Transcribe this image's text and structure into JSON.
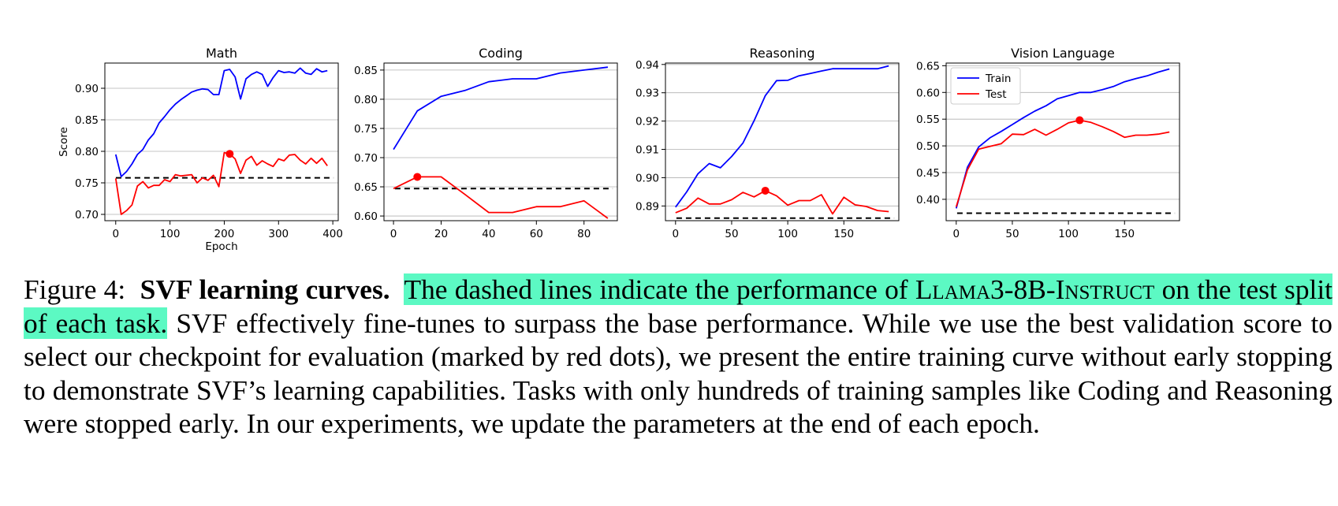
{
  "chart_data": [
    {
      "type": "line",
      "title": "Math",
      "xlabel": "Epoch",
      "ylabel": "Score",
      "xlim": [
        -20,
        410
      ],
      "ylim": [
        0.69,
        0.94
      ],
      "xticks": [
        0,
        100,
        200,
        300,
        400
      ],
      "yticks": [
        0.7,
        0.75,
        0.8,
        0.85,
        0.9
      ],
      "ytick_labels": [
        "0.70",
        "0.75",
        "0.80",
        "0.85",
        "0.90"
      ],
      "grid": "horizontal",
      "baseline": 0.758,
      "best": {
        "x": 210,
        "y": 0.796
      },
      "series": [
        {
          "name": "Train",
          "color": "#0000ff",
          "x": [
            0,
            10,
            20,
            30,
            40,
            50,
            60,
            70,
            80,
            90,
            100,
            110,
            120,
            130,
            140,
            150,
            160,
            170,
            180,
            190,
            200,
            210,
            220,
            230,
            240,
            250,
            260,
            270,
            280,
            290,
            300,
            310,
            320,
            330,
            340,
            350,
            360,
            370,
            380,
            390
          ],
          "y": [
            0.795,
            0.76,
            0.768,
            0.78,
            0.795,
            0.803,
            0.818,
            0.828,
            0.845,
            0.855,
            0.866,
            0.875,
            0.882,
            0.888,
            0.894,
            0.897,
            0.899,
            0.898,
            0.89,
            0.89,
            0.928,
            0.93,
            0.918,
            0.883,
            0.915,
            0.922,
            0.926,
            0.922,
            0.903,
            0.917,
            0.928,
            0.925,
            0.926,
            0.924,
            0.932,
            0.924,
            0.922,
            0.931,
            0.926,
            0.928
          ]
        },
        {
          "name": "Test",
          "color": "#ff0000",
          "x": [
            0,
            10,
            20,
            30,
            40,
            50,
            60,
            70,
            80,
            90,
            100,
            110,
            120,
            130,
            140,
            150,
            160,
            170,
            180,
            190,
            200,
            210,
            220,
            230,
            240,
            250,
            260,
            270,
            280,
            290,
            300,
            310,
            320,
            330,
            340,
            350,
            360,
            370,
            380,
            390
          ],
          "y": [
            0.757,
            0.7,
            0.706,
            0.715,
            0.745,
            0.752,
            0.742,
            0.746,
            0.746,
            0.755,
            0.752,
            0.763,
            0.761,
            0.762,
            0.763,
            0.75,
            0.758,
            0.754,
            0.762,
            0.744,
            0.798,
            0.796,
            0.788,
            0.765,
            0.786,
            0.792,
            0.778,
            0.785,
            0.78,
            0.776,
            0.788,
            0.785,
            0.794,
            0.795,
            0.786,
            0.78,
            0.789,
            0.781,
            0.789,
            0.777
          ]
        }
      ]
    },
    {
      "type": "line",
      "title": "Coding",
      "xlabel": "",
      "ylabel": "",
      "xlim": [
        -4,
        94
      ],
      "ylim": [
        0.592,
        0.862
      ],
      "xticks": [
        0,
        20,
        40,
        60,
        80
      ],
      "yticks": [
        0.6,
        0.65,
        0.7,
        0.75,
        0.8,
        0.85
      ],
      "ytick_labels": [
        "0.60",
        "0.65",
        "0.70",
        "0.75",
        "0.80",
        "0.85"
      ],
      "grid": "horizontal",
      "baseline": 0.647,
      "best": {
        "x": 10,
        "y": 0.667
      },
      "series": [
        {
          "name": "Train",
          "color": "#0000ff",
          "x": [
            0,
            10,
            20,
            30,
            40,
            50,
            60,
            70,
            80,
            90
          ],
          "y": [
            0.714,
            0.78,
            0.805,
            0.815,
            0.83,
            0.835,
            0.835,
            0.845,
            0.85,
            0.855
          ]
        },
        {
          "name": "Test",
          "color": "#ff0000",
          "x": [
            0,
            10,
            20,
            30,
            40,
            50,
            60,
            70,
            80,
            90
          ],
          "y": [
            0.647,
            0.667,
            0.667,
            0.637,
            0.606,
            0.606,
            0.616,
            0.616,
            0.626,
            0.596
          ]
        }
      ]
    },
    {
      "type": "line",
      "title": "Reasoning",
      "xlabel": "",
      "ylabel": "",
      "xlim": [
        -9,
        199
      ],
      "ylim": [
        0.8848,
        0.9405
      ],
      "xticks": [
        0,
        50,
        100,
        150
      ],
      "yticks": [
        0.89,
        0.9,
        0.91,
        0.92,
        0.93,
        0.94
      ],
      "ytick_labels": [
        "0.89",
        "0.90",
        "0.91",
        "0.92",
        "0.93",
        "0.94"
      ],
      "grid": "horizontal",
      "baseline": 0.8857,
      "best": {
        "x": 80,
        "y": 0.8954
      },
      "series": [
        {
          "name": "Train",
          "color": "#0000ff",
          "x": [
            0,
            10,
            20,
            30,
            40,
            50,
            60,
            70,
            80,
            90,
            100,
            110,
            120,
            130,
            140,
            150,
            160,
            170,
            180,
            190
          ],
          "y": [
            0.8896,
            0.895,
            0.9014,
            0.905,
            0.9035,
            0.9075,
            0.9122,
            0.9201,
            0.929,
            0.9343,
            0.9344,
            0.936,
            0.9368,
            0.9377,
            0.9385,
            0.9385,
            0.9385,
            0.9385,
            0.9385,
            0.9395
          ]
        },
        {
          "name": "Test",
          "color": "#ff0000",
          "x": [
            0,
            10,
            20,
            30,
            40,
            50,
            60,
            70,
            80,
            90,
            100,
            110,
            120,
            130,
            140,
            150,
            160,
            170,
            180,
            190
          ],
          "y": [
            0.8876,
            0.8892,
            0.8928,
            0.8907,
            0.8907,
            0.8922,
            0.8948,
            0.8932,
            0.8954,
            0.8936,
            0.8903,
            0.8919,
            0.8919,
            0.894,
            0.8872,
            0.8931,
            0.8904,
            0.8898,
            0.8884,
            0.888
          ]
        }
      ]
    },
    {
      "type": "line",
      "title": "Vision Language",
      "xlabel": "",
      "ylabel": "",
      "xlim": [
        -9,
        199
      ],
      "ylim": [
        0.36,
        0.655
      ],
      "xticks": [
        0,
        50,
        100,
        150
      ],
      "yticks": [
        0.4,
        0.45,
        0.5,
        0.55,
        0.6,
        0.65
      ],
      "ytick_labels": [
        "0.40",
        "0.45",
        "0.50",
        "0.55",
        "0.60",
        "0.65"
      ],
      "grid": "horizontal",
      "baseline": 0.374,
      "best": {
        "x": 110,
        "y": 0.548
      },
      "legend": "top-left",
      "series": [
        {
          "name": "Train",
          "color": "#0000ff",
          "x": [
            0,
            10,
            20,
            30,
            40,
            50,
            60,
            70,
            80,
            90,
            100,
            110,
            120,
            130,
            140,
            150,
            160,
            170,
            180,
            190
          ],
          "y": [
            0.383,
            0.46,
            0.498,
            0.515,
            0.527,
            0.54,
            0.553,
            0.565,
            0.575,
            0.588,
            0.594,
            0.6,
            0.6,
            0.605,
            0.611,
            0.62,
            0.626,
            0.631,
            0.638,
            0.644
          ]
        },
        {
          "name": "Test",
          "color": "#ff0000",
          "x": [
            0,
            10,
            20,
            30,
            40,
            50,
            60,
            70,
            80,
            90,
            100,
            110,
            120,
            130,
            140,
            150,
            160,
            170,
            180,
            190
          ],
          "y": [
            0.386,
            0.455,
            0.494,
            0.499,
            0.504,
            0.522,
            0.521,
            0.531,
            0.52,
            0.531,
            0.543,
            0.548,
            0.544,
            0.536,
            0.527,
            0.516,
            0.52,
            0.52,
            0.522,
            0.526
          ]
        }
      ]
    }
  ],
  "caption": {
    "label": "Figure 4:",
    "heading": "SVF learning curves.",
    "hl_a": "The dashed lines indicate the performance of ",
    "hl_model_part1": "Llama",
    "hl_model_part2": "3-8B-",
    "hl_model_part3": "Instruct",
    "hl_b": " on the test split of each task.",
    "rest": " SVF effectively fine-tunes to surpass the base performance. While we use the best validation score to select our checkpoint for evaluation (marked by red dots), we present the entire training curve without early stopping to demonstrate SVF’s learning capabilities. Tasks with only hundreds of training samples like Coding and Reasoning were stopped early. In our experiments, we update the parameters at the end of each epoch."
  }
}
